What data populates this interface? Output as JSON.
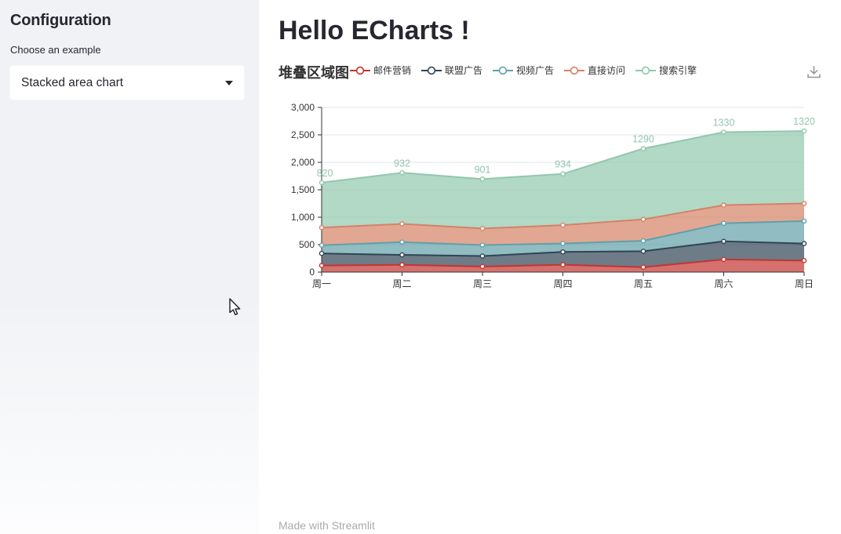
{
  "sidebar": {
    "title": "Configuration",
    "choose_label": "Choose an example",
    "selected_example": "Stacked area chart"
  },
  "main": {
    "title": "Hello ECharts !",
    "footer": "Made with Streamlit"
  },
  "chart": {
    "title": "堆叠区域图",
    "toolbox_icon": "download-icon"
  },
  "chart_data": {
    "type": "area",
    "stacked": true,
    "title": "堆叠区域图",
    "x": [
      "周一",
      "周二",
      "周三",
      "周四",
      "周五",
      "周六",
      "周日"
    ],
    "series": [
      {
        "name": "邮件营销",
        "color": "#c23531",
        "values": [
          120,
          132,
          101,
          134,
          90,
          230,
          210
        ]
      },
      {
        "name": "联盟广告",
        "color": "#2f4554",
        "values": [
          220,
          182,
          191,
          234,
          290,
          330,
          310
        ]
      },
      {
        "name": "视频广告",
        "color": "#61a0a8",
        "values": [
          150,
          232,
          201,
          154,
          190,
          330,
          410
        ]
      },
      {
        "name": "直接访问",
        "color": "#d48265",
        "values": [
          320,
          332,
          301,
          334,
          390,
          330,
          320
        ]
      },
      {
        "name": "搜索引擎",
        "color": "#91c7ae",
        "values": [
          820,
          932,
          901,
          934,
          1290,
          1330,
          1320
        ],
        "show_labels": true
      }
    ],
    "stack_totals": [
      1630,
      1810,
      1695,
      1790,
      2250,
      2550,
      2570
    ],
    "ylim": [
      0,
      3000
    ],
    "yticks": [
      0,
      500,
      1000,
      1500,
      2000,
      2500,
      3000
    ],
    "ytick_labels": [
      "0",
      "500",
      "1,000",
      "1,500",
      "2,000",
      "2,500",
      "3,000"
    ],
    "grid": true,
    "legend_position": "top",
    "area_opacity": 0.7
  },
  "colors": {
    "heading": "#262730",
    "axis": "#333333",
    "gridline": "#e0e3e8",
    "sidebar_bg": "#f0f2f6",
    "icon_grey": "#8f9693",
    "footer_grey": "rgba(38,39,48,0.4)"
  }
}
